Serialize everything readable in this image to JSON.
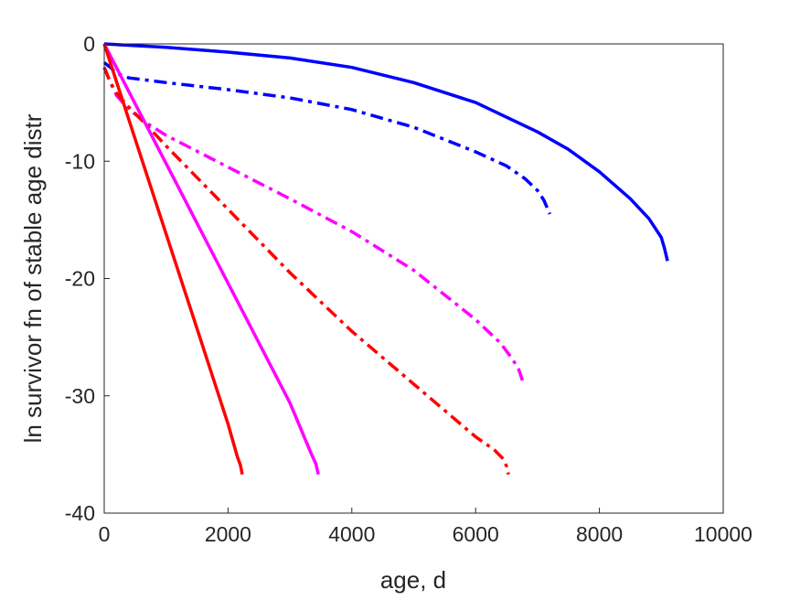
{
  "chart_data": {
    "type": "line",
    "title": "",
    "xlabel": "age, d",
    "ylabel": "ln survivor fn of stable age distr",
    "xlim": [
      0,
      10000
    ],
    "ylim": [
      -40,
      0
    ],
    "xticks": [
      0,
      2000,
      4000,
      6000,
      8000,
      10000
    ],
    "yticks": [
      0,
      -10,
      -20,
      -30,
      -40
    ],
    "xtick_labels": [
      "0",
      "2000",
      "4000",
      "6000",
      "8000",
      "10000"
    ],
    "ytick_labels": [
      "0",
      "-10",
      "-20",
      "-30",
      "-40"
    ],
    "grid": false,
    "legend": "none",
    "series": [
      {
        "color": "#0000ff",
        "style": "solid",
        "x": [
          0,
          500,
          1000,
          2000,
          3000,
          4000,
          5000,
          6000,
          7000,
          7500,
          8000,
          8500,
          8800,
          9000,
          9050,
          9100
        ],
        "y": [
          0,
          -0.15,
          -0.3,
          -0.7,
          -1.2,
          -2.0,
          -3.3,
          -5.0,
          -7.5,
          -9.0,
          -10.9,
          -13.2,
          -14.9,
          -16.5,
          -17.4,
          -18.5
        ]
      },
      {
        "color": "#0000ff",
        "style": "dashdot",
        "x": [
          0,
          100,
          200,
          400,
          1000,
          2000,
          3000,
          4000,
          5000,
          6000,
          6500,
          6800,
          7000,
          7100,
          7200
        ],
        "y": [
          -1.6,
          -2.0,
          -2.5,
          -2.9,
          -3.3,
          -3.9,
          -4.6,
          -5.6,
          -7.1,
          -9.2,
          -10.4,
          -11.5,
          -12.5,
          -13.3,
          -14.5
        ]
      },
      {
        "color": "#ff00ff",
        "style": "dashdot",
        "x": [
          0,
          100,
          200,
          400,
          700,
          1000,
          2000,
          3000,
          4000,
          5000,
          6000,
          6400,
          6600,
          6700,
          6770
        ],
        "y": [
          -2.0,
          -3.3,
          -4.4,
          -5.6,
          -6.8,
          -7.8,
          -10.5,
          -13.2,
          -16.0,
          -19.3,
          -23.5,
          -25.5,
          -26.9,
          -27.8,
          -28.9
        ]
      },
      {
        "color": "#ff0000",
        "style": "dashdot",
        "x": [
          0,
          100,
          200,
          400,
          700,
          1000,
          2000,
          3000,
          4000,
          5000,
          6000,
          6300,
          6450,
          6500,
          6530
        ],
        "y": [
          -2.0,
          -3.3,
          -4.2,
          -5.4,
          -7.0,
          -8.7,
          -14.1,
          -19.5,
          -24.5,
          -29.0,
          -33.5,
          -34.6,
          -35.4,
          -36.0,
          -36.7
        ]
      },
      {
        "color": "#ff00ff",
        "style": "solid",
        "x": [
          0,
          500,
          1000,
          2000,
          3000,
          3350,
          3420,
          3460
        ],
        "y": [
          0,
          -5.1,
          -10.2,
          -20.4,
          -30.6,
          -35.0,
          -35.8,
          -36.7
        ]
      },
      {
        "color": "#ff0000",
        "style": "solid",
        "x": [
          0,
          500,
          1000,
          1500,
          2000,
          2150,
          2200,
          2230
        ],
        "y": [
          0,
          -8.1,
          -16.2,
          -24.3,
          -32.4,
          -35.2,
          -35.9,
          -36.7
        ]
      }
    ]
  }
}
